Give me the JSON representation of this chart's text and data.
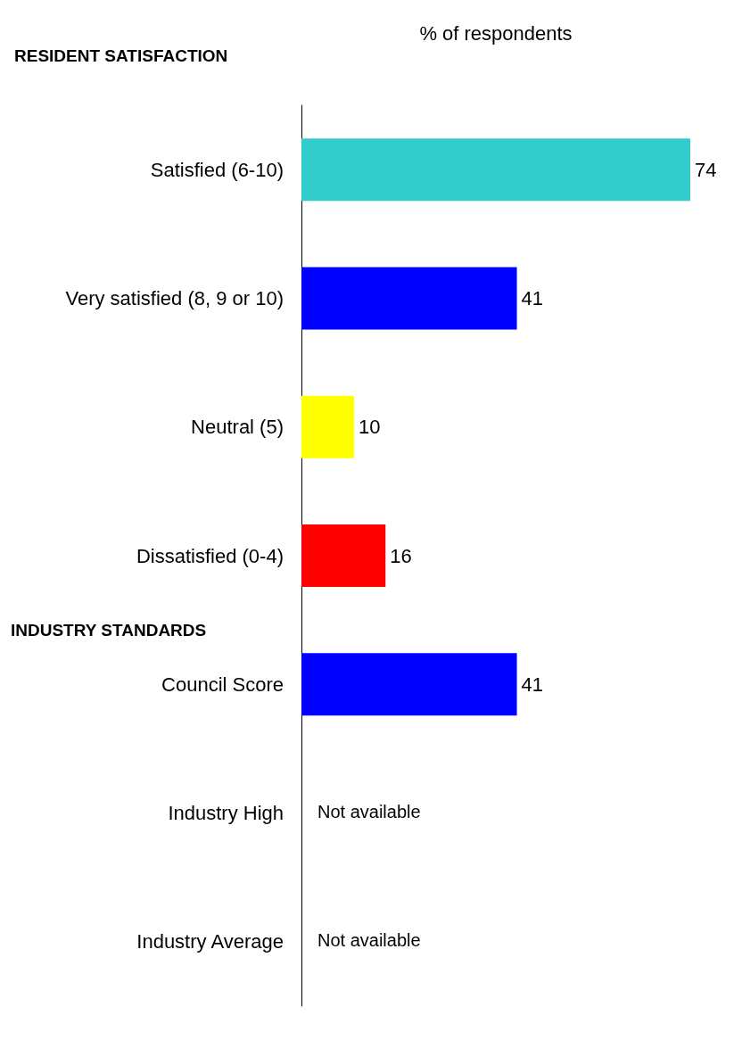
{
  "chart_data": {
    "type": "bar",
    "orientation": "horizontal",
    "xlabel": "% of respondents",
    "categories": [
      "Satisfied (6-10)",
      "Very satisfied (8, 9 or 10)",
      "Neutral (5)",
      "Dissatisfied (0-4)",
      "Council Score",
      "Industry High",
      "Industry Average"
    ],
    "values": [
      74,
      41,
      10,
      16,
      41,
      null,
      null
    ],
    "colors": [
      "#33cccc",
      "#0000ff",
      "#ffff00",
      "#ff0000",
      "#0000ff",
      "#0000ff",
      "#0000ff"
    ],
    "value_labels": [
      "74",
      "41",
      "10",
      "16",
      "41",
      "Not available",
      "Not available"
    ],
    "annotations": [
      "RESIDENT SATISFACTION",
      "INDUSTRY STANDARDS"
    ],
    "data_labels": true
  }
}
